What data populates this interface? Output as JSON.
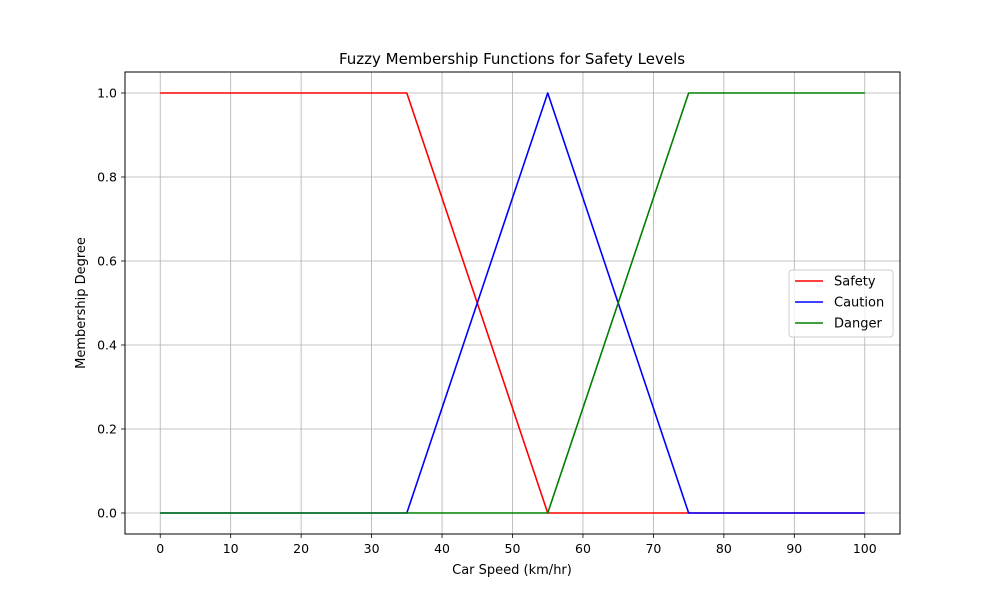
{
  "chart_data": {
    "type": "line",
    "title": "Fuzzy Membership Functions for Safety Levels",
    "xlabel": "Car Speed (km/hr)",
    "ylabel": "Membership Degree",
    "xlim": [
      -5,
      105
    ],
    "ylim": [
      -0.05,
      1.05
    ],
    "xticks": [
      0,
      10,
      20,
      30,
      40,
      50,
      60,
      70,
      80,
      90,
      100
    ],
    "yticks": [
      0.0,
      0.2,
      0.4,
      0.6,
      0.8,
      1.0
    ],
    "ytick_labels": [
      "0.0",
      "0.2",
      "0.4",
      "0.6",
      "0.8",
      "1.0"
    ],
    "grid": true,
    "legend_position": "center-right",
    "series": [
      {
        "name": "Safety",
        "color": "#ff0000",
        "x": [
          0,
          35,
          55,
          75,
          100
        ],
        "y": [
          1,
          1,
          0,
          0,
          0
        ]
      },
      {
        "name": "Caution",
        "color": "#0000ff",
        "x": [
          0,
          35,
          55,
          75,
          100
        ],
        "y": [
          0,
          0,
          1,
          0,
          0
        ]
      },
      {
        "name": "Danger",
        "color": "#008000",
        "x": [
          0,
          35,
          55,
          75,
          100
        ],
        "y": [
          0,
          0,
          0,
          1,
          1
        ]
      }
    ]
  }
}
